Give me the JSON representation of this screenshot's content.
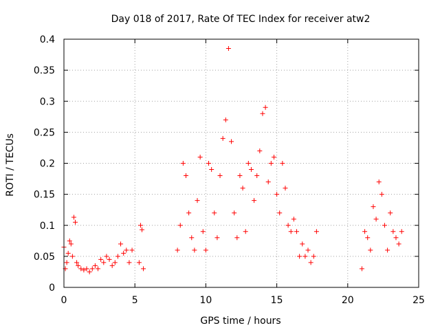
{
  "chart_data": {
    "type": "scatter",
    "title": "Day 018 of 2017, Rate Of TEC Index for receiver atw2",
    "xlabel": "GPS time / hours",
    "ylabel": "ROTI / TECUs",
    "xlim": [
      0,
      25
    ],
    "ylim": [
      0,
      0.4
    ],
    "x_ticks": [
      0,
      5,
      10,
      15,
      20,
      25
    ],
    "y_ticks": [
      0,
      0.05,
      0.1,
      0.15,
      0.2,
      0.25,
      0.3,
      0.35,
      0.4
    ],
    "x_tick_labels": [
      "0",
      "5",
      "10",
      "15",
      "20",
      "25"
    ],
    "y_tick_labels": [
      "0",
      "0.05",
      "0.1",
      "0.15",
      "0.2",
      "0.25",
      "0.3",
      "0.35",
      "0.4"
    ],
    "grid": true,
    "legend": "none",
    "marker": "plus",
    "color": "#ff0000",
    "series": [
      {
        "x": [
          0.0,
          0.1,
          0.2,
          0.3,
          0.4,
          0.5,
          0.6,
          0.7,
          0.8,
          0.9,
          1.0,
          1.2,
          1.4,
          1.6,
          1.8,
          2.0,
          2.2,
          2.4,
          2.6,
          2.8,
          3.0,
          3.2,
          3.4,
          3.6,
          3.8,
          4.0,
          4.2,
          4.4,
          4.6,
          4.8,
          5.3,
          5.4,
          5.5,
          5.6,
          8.0,
          8.2,
          8.4,
          8.6,
          8.8,
          9.0,
          9.2,
          9.4,
          9.6,
          9.8,
          10.0,
          10.2,
          10.4,
          10.6,
          10.8,
          11.0,
          11.2,
          11.4,
          11.6,
          11.8,
          12.0,
          12.2,
          12.4,
          12.6,
          12.8,
          13.0,
          13.2,
          13.4,
          13.6,
          13.8,
          14.0,
          14.2,
          14.4,
          14.6,
          14.8,
          15.0,
          15.2,
          15.4,
          15.6,
          15.8,
          16.0,
          16.2,
          16.4,
          16.6,
          16.8,
          17.0,
          17.2,
          17.4,
          17.6,
          17.8,
          21.0,
          21.2,
          21.4,
          21.6,
          21.8,
          22.0,
          22.2,
          22.4,
          22.6,
          22.8,
          23.0,
          23.2,
          23.4,
          23.6,
          23.8
        ],
        "y": [
          0.065,
          0.03,
          0.04,
          0.055,
          0.075,
          0.07,
          0.05,
          0.113,
          0.105,
          0.04,
          0.035,
          0.03,
          0.028,
          0.03,
          0.025,
          0.03,
          0.035,
          0.03,
          0.045,
          0.04,
          0.05,
          0.045,
          0.035,
          0.04,
          0.05,
          0.07,
          0.055,
          0.06,
          0.04,
          0.06,
          0.04,
          0.1,
          0.093,
          0.03,
          0.06,
          0.1,
          0.2,
          0.18,
          0.12,
          0.08,
          0.06,
          0.14,
          0.21,
          0.09,
          0.06,
          0.2,
          0.19,
          0.12,
          0.08,
          0.18,
          0.24,
          0.27,
          0.385,
          0.235,
          0.12,
          0.08,
          0.18,
          0.16,
          0.09,
          0.2,
          0.19,
          0.14,
          0.18,
          0.22,
          0.28,
          0.29,
          0.17,
          0.2,
          0.21,
          0.15,
          0.12,
          0.2,
          0.16,
          0.1,
          0.09,
          0.11,
          0.09,
          0.05,
          0.07,
          0.05,
          0.06,
          0.04,
          0.05,
          0.09,
          0.03,
          0.09,
          0.08,
          0.06,
          0.13,
          0.11,
          0.17,
          0.15,
          0.1,
          0.06,
          0.12,
          0.09,
          0.08,
          0.07,
          0.09
        ]
      }
    ]
  }
}
